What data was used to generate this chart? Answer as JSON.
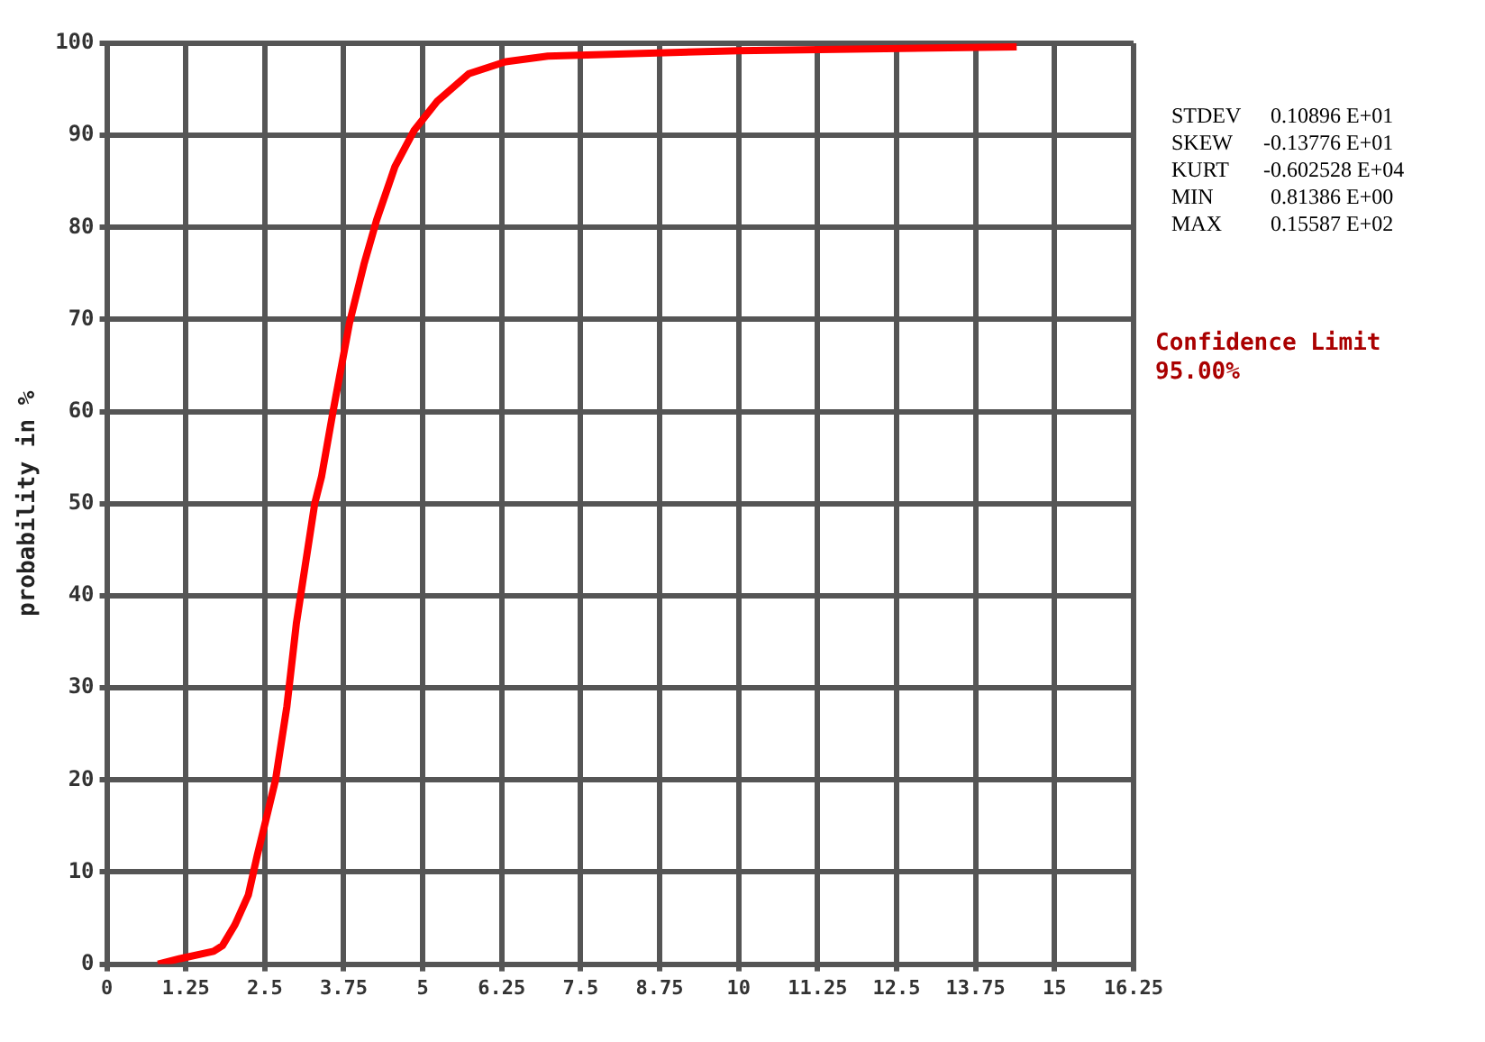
{
  "chart_data": {
    "type": "line",
    "ylabel": "probability in %",
    "xlim": [
      0,
      16.25
    ],
    "xticks": [
      0,
      1.25,
      2.5,
      3.75,
      5,
      6.25,
      7.5,
      8.75,
      10,
      11.25,
      12.5,
      13.75,
      15,
      16.25
    ],
    "ylim": [
      0,
      100
    ],
    "yticks": [
      0,
      10,
      20,
      30,
      40,
      50,
      60,
      70,
      80,
      90,
      100
    ],
    "grid": true,
    "legend": false,
    "marker": "none",
    "line_style": "solid",
    "series": [
      {
        "color": "#ff0000",
        "x": [
          0.81,
          1.16,
          1.69,
          1.83,
          2.03,
          2.24,
          2.38,
          2.53,
          2.67,
          2.85,
          3.0,
          3.1,
          3.29,
          3.4,
          3.58,
          3.84,
          4.07,
          4.27,
          4.56,
          4.86,
          5.23,
          5.73,
          6.31,
          6.98,
          10,
          14.4
        ],
        "values": [
          0,
          0.6,
          1.4,
          2,
          4.3,
          7.5,
          11.8,
          16,
          20,
          28,
          37,
          41.5,
          50,
          53,
          60,
          69.6,
          76,
          80.8,
          86.6,
          90.5,
          93.7,
          96.7,
          98,
          98.6,
          99.2,
          99.6
        ]
      }
    ],
    "annotations": [
      "STDEV    0.10896 E+01",
      "SKEW    -0.13776 E+01",
      "KURT   -0.602528 E+04",
      "MIN      0.81386 E+00",
      "MAX      0.15587 E+02",
      "Confidence Limit",
      "95.00%"
    ]
  }
}
